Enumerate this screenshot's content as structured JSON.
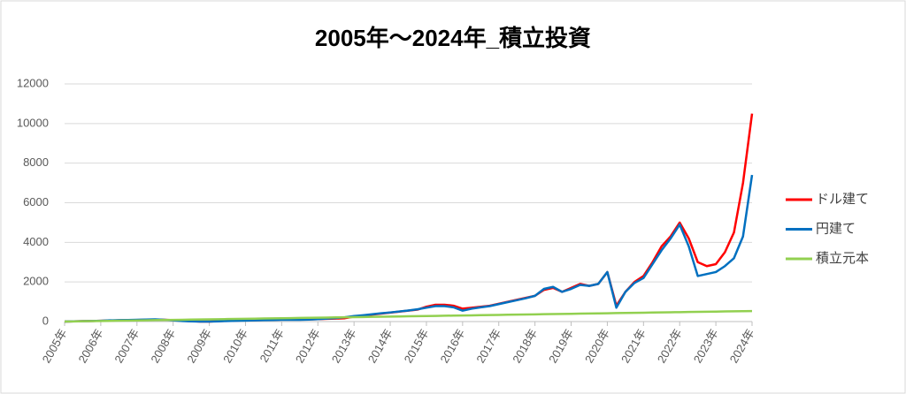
{
  "chart_data": {
    "type": "line",
    "title": "2005年～2024年_積立投資",
    "categories": [
      "2005年",
      null,
      null,
      null,
      "2006年",
      null,
      null,
      null,
      "2007年",
      null,
      null,
      null,
      "2008年",
      null,
      null,
      null,
      "2009年",
      null,
      null,
      null,
      "2010年",
      null,
      null,
      null,
      "2011年",
      null,
      null,
      null,
      "2012年",
      null,
      null,
      null,
      "2013年",
      null,
      null,
      null,
      "2014年",
      null,
      null,
      null,
      "2015年",
      null,
      null,
      null,
      "2016年",
      null,
      null,
      null,
      "2017年",
      null,
      null,
      null,
      "2018年",
      null,
      null,
      null,
      "2019年",
      null,
      null,
      null,
      "2020年",
      null,
      null,
      null,
      "2021年",
      null,
      null,
      null,
      "2022年",
      null,
      null,
      null,
      "2023年",
      null,
      null,
      null,
      "2024年"
    ],
    "series": [
      {
        "name": "ドル建て",
        "color": "#ff0000",
        "values": [
          0,
          10,
          20,
          30,
          40,
          50,
          60,
          70,
          80,
          90,
          100,
          90,
          70,
          40,
          20,
          0,
          0,
          20,
          40,
          50,
          60,
          70,
          80,
          90,
          100,
          110,
          100,
          110,
          120,
          140,
          150,
          170,
          250,
          300,
          350,
          400,
          450,
          500,
          550,
          600,
          750,
          850,
          850,
          800,
          650,
          700,
          750,
          800,
          900,
          1000,
          1100,
          1200,
          1300,
          1600,
          1700,
          1500,
          1700,
          1900,
          1800,
          1900,
          2500,
          800,
          1500,
          2000,
          2300,
          3000,
          3800,
          4300,
          5000,
          4200,
          3000,
          2800,
          2900,
          3500,
          4500,
          7000,
          10500
        ]
      },
      {
        "name": "円建て",
        "color": "#0070c0",
        "values": [
          0,
          10,
          20,
          30,
          40,
          60,
          70,
          80,
          90,
          100,
          110,
          90,
          60,
          30,
          10,
          0,
          0,
          10,
          30,
          40,
          50,
          60,
          70,
          80,
          90,
          90,
          90,
          100,
          120,
          150,
          180,
          220,
          280,
          320,
          370,
          420,
          460,
          510,
          560,
          620,
          700,
          780,
          780,
          720,
          550,
          650,
          720,
          780,
          880,
          980,
          1080,
          1180,
          1300,
          1650,
          1750,
          1500,
          1650,
          1850,
          1800,
          1900,
          2500,
          700,
          1500,
          1950,
          2200,
          2900,
          3600,
          4200,
          4900,
          3800,
          2300,
          2400,
          2500,
          2800,
          3200,
          4300,
          7400
        ]
      },
      {
        "name": "積立元本",
        "color": "#92d050",
        "values": [
          0,
          7,
          14,
          21,
          28,
          35,
          42,
          49,
          56,
          63,
          70,
          77,
          84,
          91,
          98,
          105,
          112,
          119,
          126,
          133,
          140,
          147,
          154,
          161,
          168,
          175,
          182,
          189,
          196,
          203,
          210,
          217,
          224,
          231,
          238,
          245,
          252,
          259,
          266,
          273,
          280,
          287,
          294,
          301,
          308,
          315,
          322,
          329,
          336,
          343,
          350,
          357,
          364,
          371,
          378,
          385,
          392,
          399,
          406,
          413,
          420,
          427,
          434,
          441,
          448,
          455,
          462,
          469,
          476,
          483,
          490,
          497,
          504,
          511,
          518,
          525,
          532
        ]
      }
    ],
    "ylim": [
      0,
      12000
    ],
    "yticks": [
      0,
      2000,
      4000,
      6000,
      8000,
      10000,
      12000
    ],
    "grid": true,
    "legend": "right"
  }
}
